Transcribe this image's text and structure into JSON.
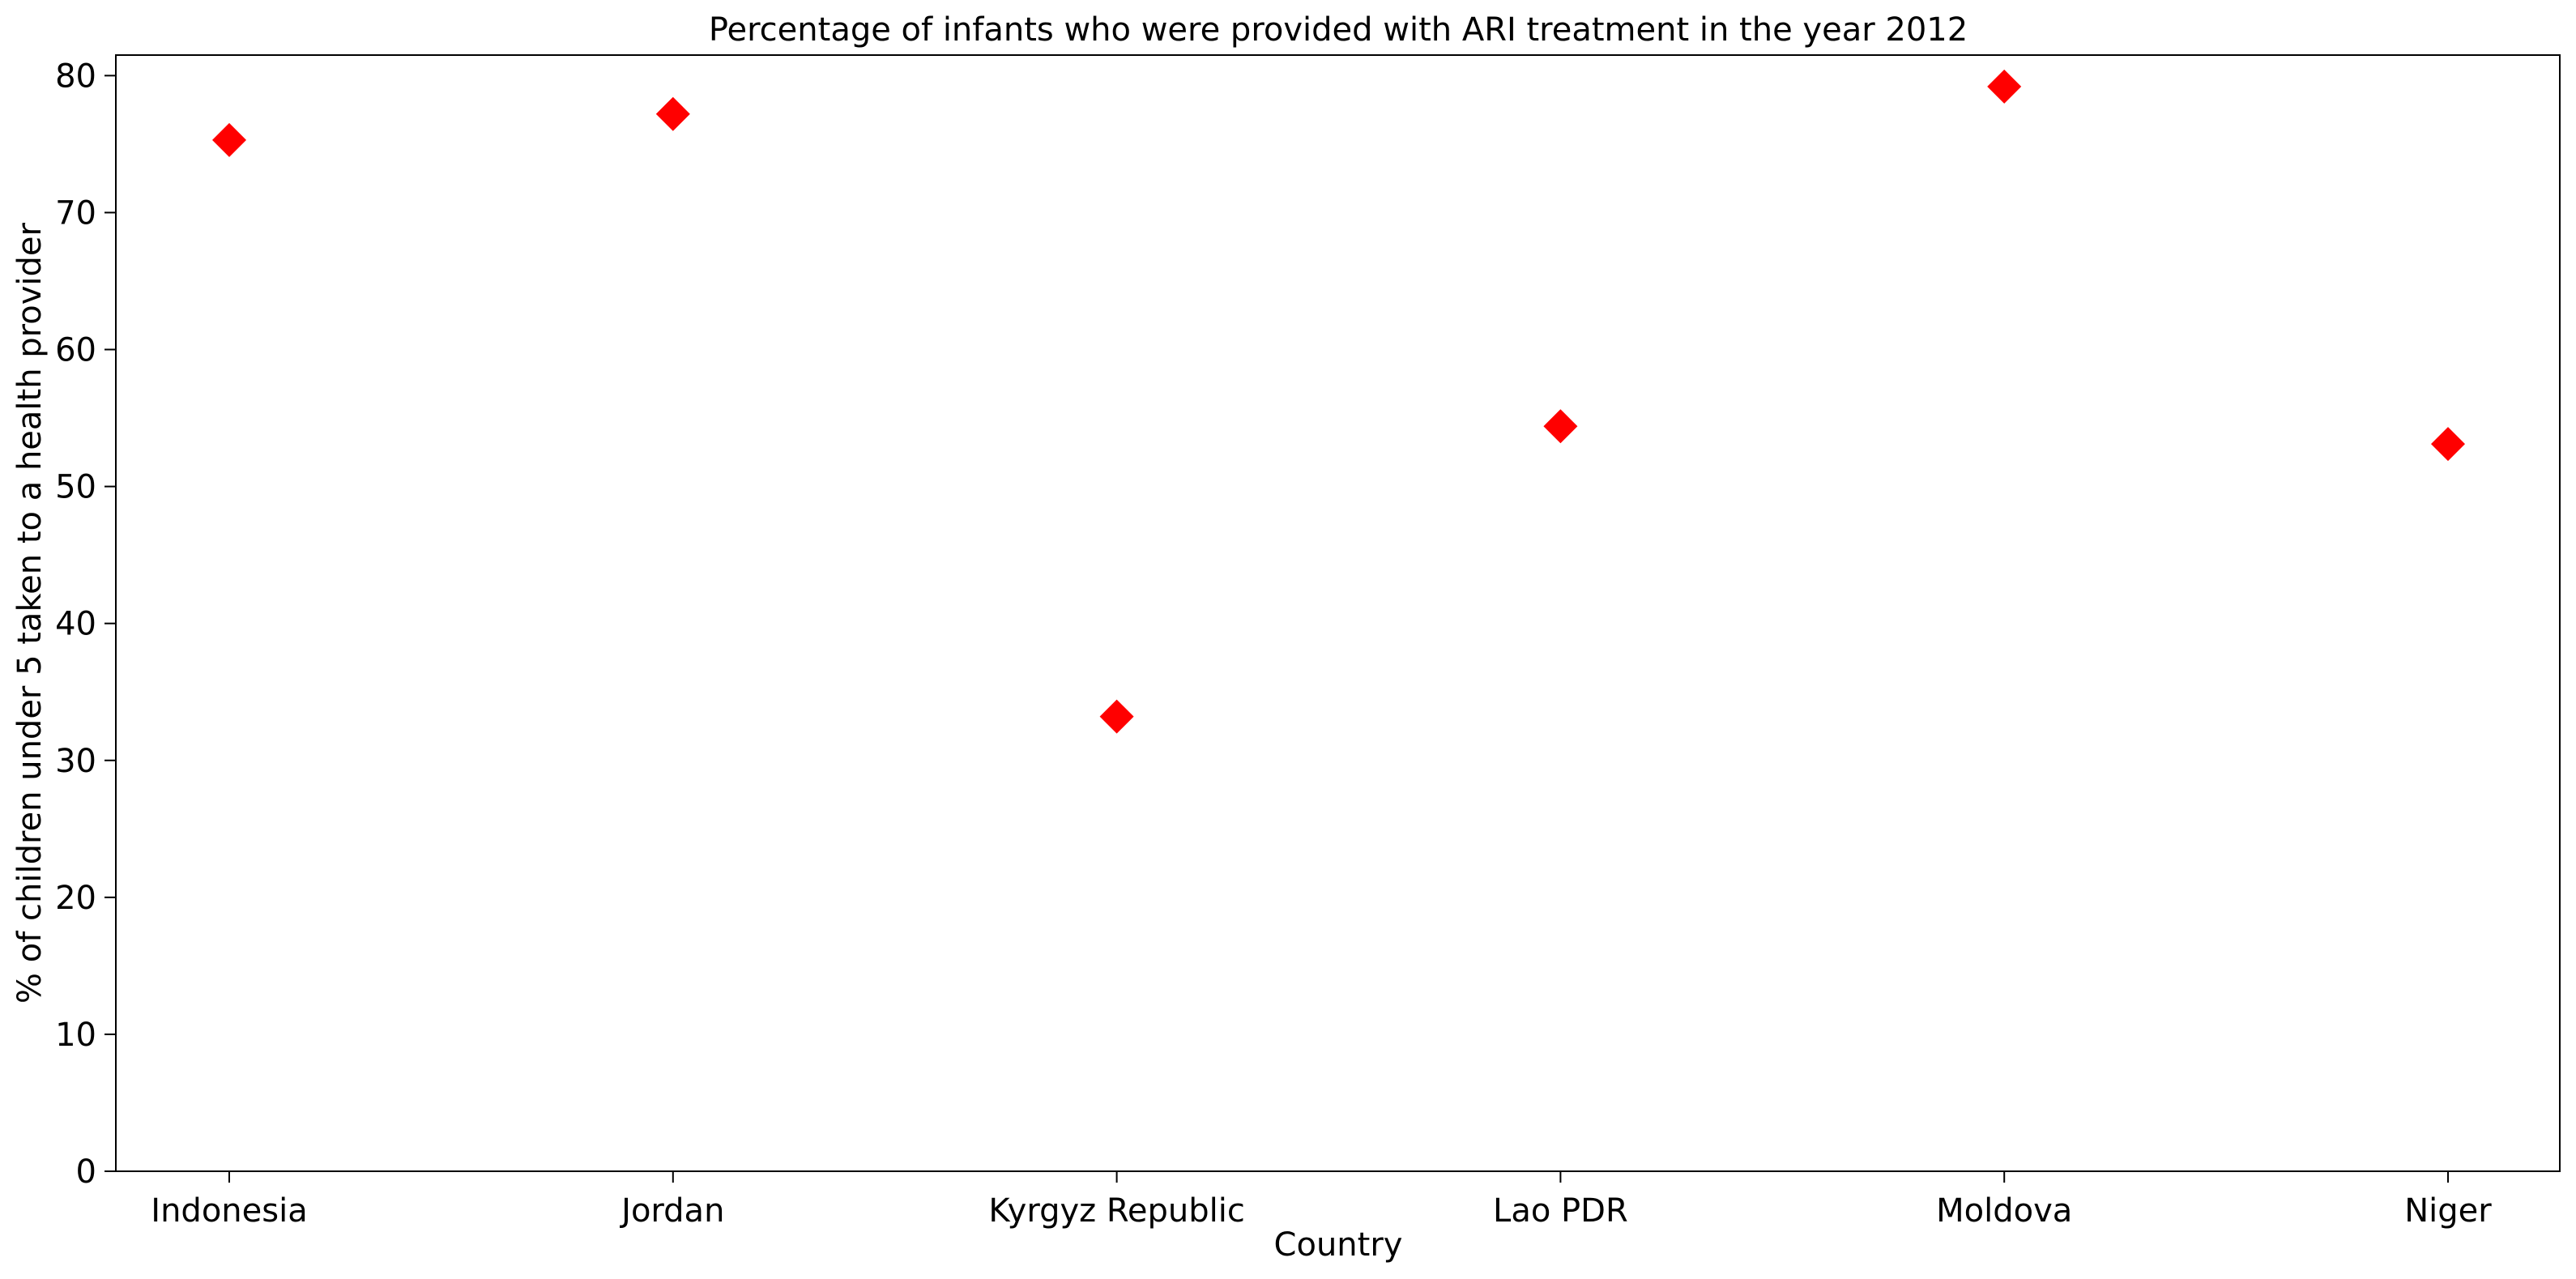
{
  "chart_data": {
    "type": "scatter",
    "title": "Percentage of infants who were provided with ARI treatment in the year 2012",
    "xlabel": "Country",
    "ylabel": "% of children under 5 taken to a health provider",
    "categories": [
      "Indonesia",
      "Jordan",
      "Kyrgyz Republic",
      "Lao PDR",
      "Moldova",
      "Niger"
    ],
    "series": [
      {
        "values": [
          75.3,
          77.2,
          33.2,
          54.4,
          79.2,
          53.1
        ],
        "color": "#ff0000",
        "marker": "diamond"
      }
    ],
    "ylim": [
      0,
      81.5
    ],
    "yticks": [
      0,
      10,
      20,
      30,
      40,
      50,
      60,
      70,
      80
    ],
    "grid": false,
    "legend": "none"
  }
}
